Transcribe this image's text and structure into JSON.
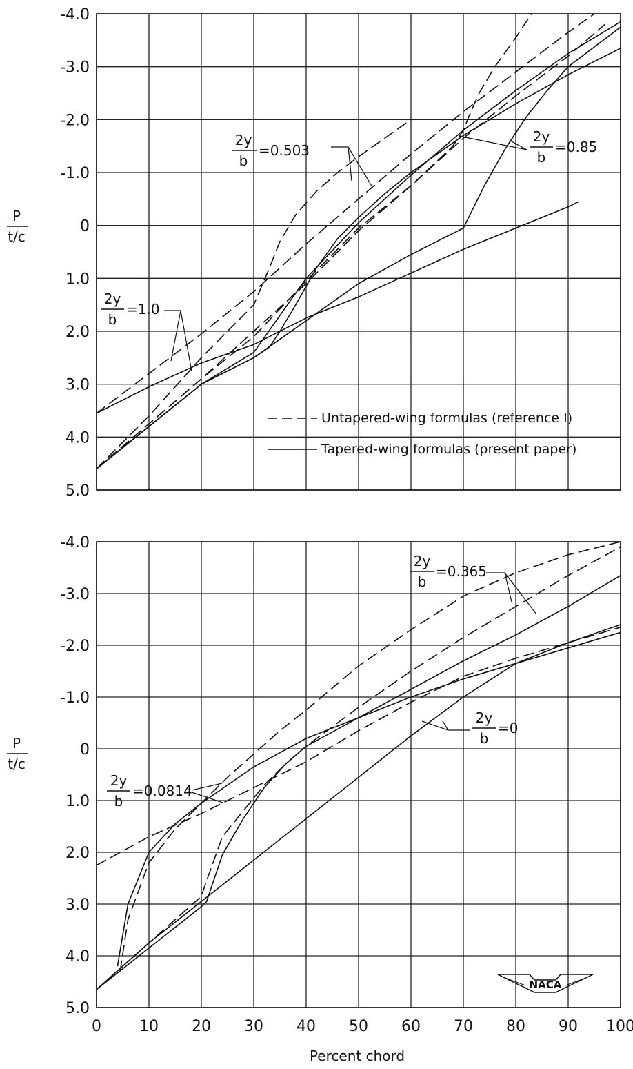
{
  "chart_data": [
    {
      "type": "line",
      "xlabel": "",
      "ylabel": [
        "P",
        "t/c"
      ],
      "xlim": [
        0,
        100
      ],
      "ylim": [
        -4.0,
        5.0
      ],
      "y_inverted": true,
      "grid": true,
      "x_ticks": [
        "0",
        "10",
        "20",
        "30",
        "40",
        "50",
        "60",
        "70",
        "80",
        "90",
        "100"
      ],
      "y_ticks": [
        "-4.0",
        "-3.0",
        "-2.0",
        "-1.0",
        "0",
        "1.0",
        "2.0",
        "3.0",
        "4.0",
        "5.0"
      ],
      "y_tick_values": [
        -4,
        -3,
        -2,
        -1,
        0,
        1,
        2,
        3,
        4,
        5
      ],
      "legend": {
        "position": "bottom-right",
        "entries": [
          {
            "label": "Untapered-wing formulas (reference I)",
            "style": "dashed"
          },
          {
            "label": "Tapered-wing formulas (present paper)",
            "style": "solid"
          }
        ]
      },
      "annotations": [
        {
          "frac_num": "2y",
          "frac_den": "b",
          "value": "=0.503"
        },
        {
          "frac_num": "2y",
          "frac_den": "b",
          "value": "=0.85"
        },
        {
          "frac_num": "2y",
          "frac_den": "b",
          "value": "=1.0"
        }
      ],
      "series": [
        {
          "style": "dashed",
          "x": [
            0,
            10,
            20,
            30,
            40,
            50,
            60,
            70,
            80,
            90,
            97
          ],
          "y": [
            4.6,
            3.75,
            2.9,
            2.0,
            1.1,
            0.1,
            -0.75,
            -1.65,
            -2.45,
            -3.2,
            -3.8
          ]
        },
        {
          "style": "solid",
          "x": [
            0,
            10,
            20,
            30,
            40,
            50,
            60,
            70,
            80,
            90,
            100
          ],
          "y": [
            4.6,
            3.8,
            3.0,
            2.4,
            1.0,
            -0.05,
            -0.95,
            -1.8,
            -2.55,
            -3.25,
            -3.85
          ]
        },
        {
          "style": "dashed",
          "x": [
            0,
            10,
            20,
            30,
            40,
            50,
            60,
            70,
            80,
            90,
            95
          ],
          "y": [
            3.55,
            2.8,
            2.05,
            1.25,
            0.35,
            -0.5,
            -1.35,
            -2.15,
            -2.9,
            -3.65,
            -4.0
          ]
        },
        {
          "style": "solid",
          "x": [
            0,
            10,
            20,
            30,
            40,
            50,
            60,
            70,
            80,
            90,
            92
          ],
          "y": [
            3.55,
            3.05,
            2.6,
            2.25,
            1.75,
            1.35,
            0.9,
            0.45,
            0.05,
            -0.35,
            -0.45
          ]
        },
        {
          "style": "dashed",
          "x": [
            0,
            10,
            20,
            30,
            33,
            35,
            38,
            42,
            46,
            50,
            55,
            60
          ],
          "y": [
            4.6,
            3.6,
            2.5,
            1.5,
            0.8,
            0.3,
            -0.2,
            -0.65,
            -1.0,
            -1.3,
            -1.65,
            -2.0
          ]
        },
        {
          "style": "solid",
          "x": [
            0,
            10,
            20,
            30,
            33,
            35,
            38,
            42,
            46,
            50,
            55,
            60,
            70,
            80,
            90,
            100
          ],
          "y": [
            4.6,
            3.8,
            3.0,
            2.5,
            2.3,
            2.0,
            1.5,
            0.8,
            0.25,
            -0.15,
            -0.6,
            -1.0,
            -1.7,
            -2.3,
            -2.85,
            -3.35
          ]
        },
        {
          "style": "dashed",
          "x": [
            0,
            10,
            20,
            30,
            40,
            50,
            60,
            68,
            70,
            71,
            73,
            76,
            80,
            83
          ],
          "y": [
            4.6,
            3.75,
            2.9,
            2.1,
            1.05,
            0.05,
            -0.75,
            -1.5,
            -1.8,
            -2.05,
            -2.5,
            -3.0,
            -3.55,
            -4.0
          ]
        },
        {
          "style": "solid",
          "x": [
            0,
            10,
            20,
            30,
            40,
            50,
            60,
            70,
            71,
            74,
            78,
            82,
            86,
            90,
            100
          ],
          "y": [
            4.6,
            3.8,
            3.0,
            2.5,
            1.8,
            1.1,
            0.55,
            0.05,
            -0.15,
            -0.75,
            -1.45,
            -2.05,
            -2.55,
            -3.0,
            -3.75
          ]
        }
      ]
    },
    {
      "type": "line",
      "xlabel": "Percent chord",
      "ylabel": [
        "P",
        "t/c"
      ],
      "xlim": [
        0,
        100
      ],
      "ylim": [
        -4.0,
        5.0
      ],
      "y_inverted": true,
      "grid": true,
      "x_ticks": [
        "0",
        "10",
        "20",
        "30",
        "40",
        "50",
        "60",
        "70",
        "80",
        "90",
        "100"
      ],
      "y_ticks": [
        "-4.0",
        "-3.0",
        "-2.0",
        "-1.0",
        "0",
        "1.0",
        "2.0",
        "3.0",
        "4.0",
        "5.0"
      ],
      "y_tick_values": [
        -4,
        -3,
        -2,
        -1,
        0,
        1,
        2,
        3,
        4,
        5
      ],
      "logo": "NACA",
      "annotations": [
        {
          "frac_num": "2y",
          "frac_den": "b",
          "value": "=0.365"
        },
        {
          "frac_num": "2y",
          "frac_den": "b",
          "value": "=0"
        },
        {
          "frac_num": "2y",
          "frac_den": "b",
          "value": "=0.0814"
        }
      ],
      "series": [
        {
          "style": "dashed",
          "x": [
            0,
            10,
            20,
            30,
            40,
            50,
            60,
            70,
            80,
            90,
            100
          ],
          "y": [
            2.25,
            1.7,
            1.25,
            0.75,
            0.25,
            -0.35,
            -0.9,
            -1.4,
            -1.75,
            -2.05,
            -2.35
          ]
        },
        {
          "style": "solid",
          "x": [
            0,
            10,
            20,
            30,
            40,
            50,
            60,
            70,
            80,
            90,
            100
          ],
          "y": [
            4.65,
            3.75,
            2.95,
            2.15,
            1.35,
            0.55,
            -0.25,
            -1.0,
            -1.65,
            -2.05,
            -2.4
          ]
        },
        {
          "style": "dashed",
          "x": [
            4.5,
            6,
            10,
            15,
            20,
            25,
            30,
            35,
            40,
            50,
            60,
            70,
            80,
            90,
            100
          ],
          "y": [
            4.3,
            3.3,
            2.2,
            1.55,
            1.05,
            0.55,
            0.1,
            -0.35,
            -0.75,
            -1.6,
            -2.3,
            -2.95,
            -3.4,
            -3.75,
            -4.0
          ]
        },
        {
          "style": "solid",
          "x": [
            4,
            6,
            10,
            15,
            20,
            25,
            30,
            40,
            50,
            60,
            70,
            80,
            90,
            100
          ],
          "y": [
            4.2,
            3.0,
            2.0,
            1.45,
            1.05,
            0.7,
            0.35,
            -0.2,
            -0.6,
            -1.0,
            -1.35,
            -1.65,
            -1.95,
            -2.25
          ]
        },
        {
          "style": "dashed",
          "x": [
            0,
            10,
            20,
            21,
            24,
            28,
            32,
            36,
            40,
            50,
            60,
            70,
            80,
            90,
            100
          ],
          "y": [
            4.65,
            3.75,
            2.85,
            2.55,
            1.7,
            1.2,
            0.7,
            0.3,
            -0.05,
            -0.8,
            -1.5,
            -2.15,
            -2.75,
            -3.35,
            -3.9
          ]
        },
        {
          "style": "solid",
          "x": [
            0,
            10,
            20,
            21,
            24,
            28,
            32,
            36,
            40,
            50,
            60,
            70,
            80,
            90,
            100
          ],
          "y": [
            4.65,
            3.85,
            3.05,
            2.95,
            2.05,
            1.35,
            0.75,
            0.3,
            -0.05,
            -0.6,
            -1.15,
            -1.7,
            -2.2,
            -2.75,
            -3.35
          ]
        }
      ]
    }
  ]
}
